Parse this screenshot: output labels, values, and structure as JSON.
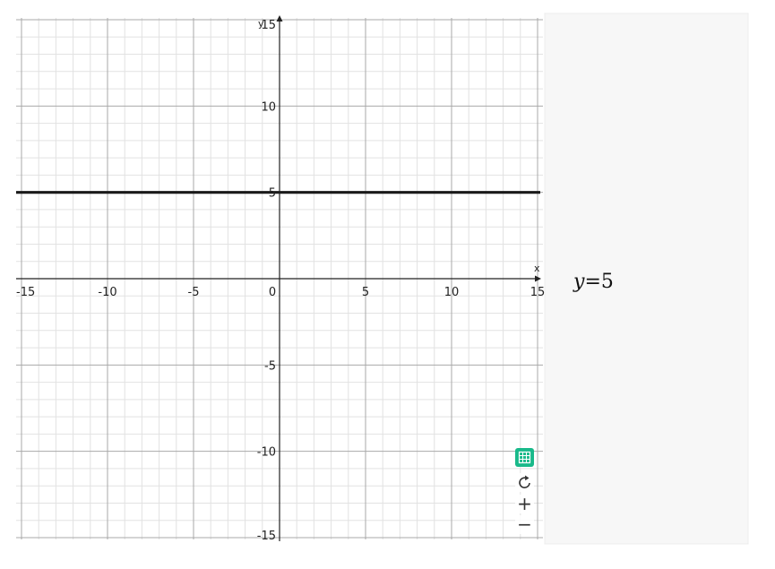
{
  "chart_data": {
    "type": "line",
    "xlabel": "x",
    "ylabel": "y",
    "xlim": [
      -15,
      15
    ],
    "ylim": [
      -15,
      15
    ],
    "major_step": 5,
    "minor_step": 1,
    "grid": true,
    "x_ticks": [
      "-15",
      "-10",
      "-5",
      "0",
      "5",
      "10",
      "15"
    ],
    "y_ticks": [
      "15",
      "10",
      "5",
      "-5",
      "-10",
      "-15"
    ],
    "series": [
      {
        "name": "y=5",
        "x": [
          -15,
          15
        ],
        "y": [
          5,
          5
        ],
        "color": "#1a1a1a"
      }
    ],
    "equation_label": "y=5"
  },
  "controls": {
    "table_icon": "table-icon",
    "reset_icon": "reset-icon",
    "zoom_in_label": "+",
    "zoom_out_label": "−",
    "accent": "#19b98a"
  }
}
